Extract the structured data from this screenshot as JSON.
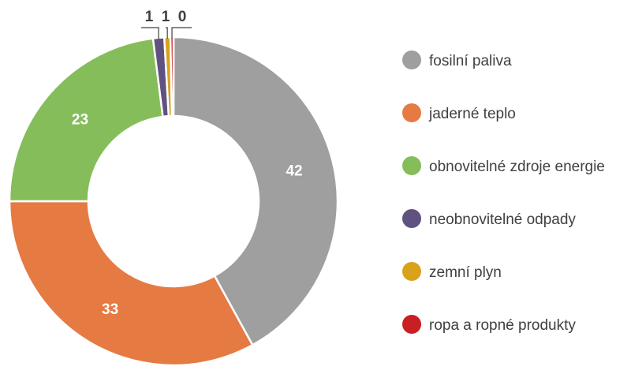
{
  "chart_data": {
    "type": "pie",
    "variant": "donut",
    "title": "",
    "series": [
      {
        "name": "fosilní paliva",
        "value": 42,
        "label": "42",
        "color": "#a09f9f"
      },
      {
        "name": "jaderné teplo",
        "value": 33,
        "label": "33",
        "color": "#e57a43"
      },
      {
        "name": "obnovitelné zdroje energie",
        "value": 23,
        "label": "23",
        "color": "#86bd5b"
      },
      {
        "name": "neobnovitelné odpady",
        "value": 1.1,
        "label": "1",
        "color": "#5f5280"
      },
      {
        "name": "zemní plyn",
        "value": 0.6,
        "label": "1",
        "color": "#d9a21b"
      },
      {
        "name": "ropa a ropné produkty",
        "value": 0.3,
        "label": "0",
        "color": "#c81f25"
      }
    ],
    "legend_position": "right",
    "label_color": "#ffffff",
    "outside_label_color": "#404040",
    "legend_text_color": "#404040"
  }
}
